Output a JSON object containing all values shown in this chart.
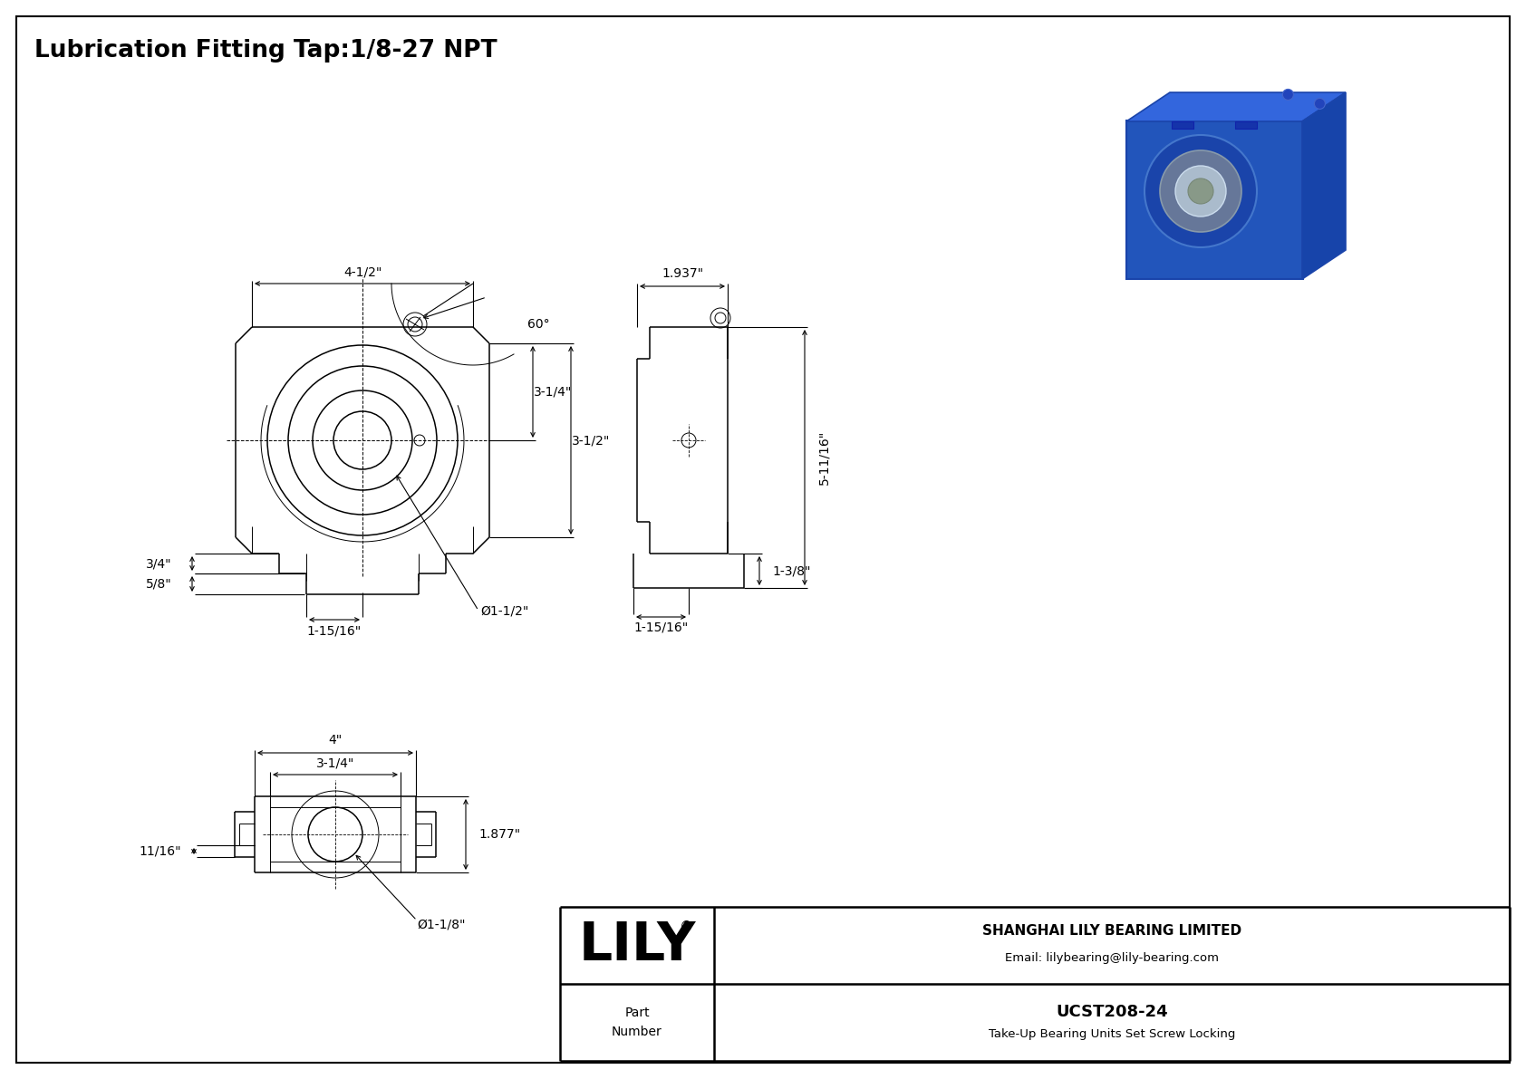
{
  "bg_color": "#ffffff",
  "line_color": "#000000",
  "title": "Lubrication Fitting Tap:1/8-27 NPT",
  "title_fontsize": 19,
  "company": "SHANGHAI LILY BEARING LIMITED",
  "email": "Email: lilybearing@lily-bearing.com",
  "part_label": "Part\nNumber",
  "part_number": "UCST208-24",
  "part_desc": "Take-Up Bearing Units Set Screw Locking",
  "lily_logo": "LILY",
  "registered": "®",
  "dim_fontsize": 10,
  "dims": {
    "width_top": "4-1/2\"",
    "dim_34": "3/4\"",
    "dim_58": "5/8\"",
    "dim_1_15_16_front": "1-15/16\"",
    "dim_phi_1_12": "Ø1-1/2\"",
    "dim_3_14": "3-1/4\"",
    "dim_3_12": "3-1/2\"",
    "dim_right_1_937": "1.937\"",
    "dim_right_5_1116": "5-11/16\"",
    "dim_right_1_38": "1-3/8\"",
    "dim_right_1_1516": "1-15/16\"",
    "dim_bot_4": "4\"",
    "dim_bot_3_14": "3-1/4\"",
    "dim_bot_1_877": "1.877\"",
    "dim_bot_phi_1_18": "Ø1-1/8\"",
    "dim_bot_11_16": "11/16\"",
    "angle_60": "60°"
  }
}
